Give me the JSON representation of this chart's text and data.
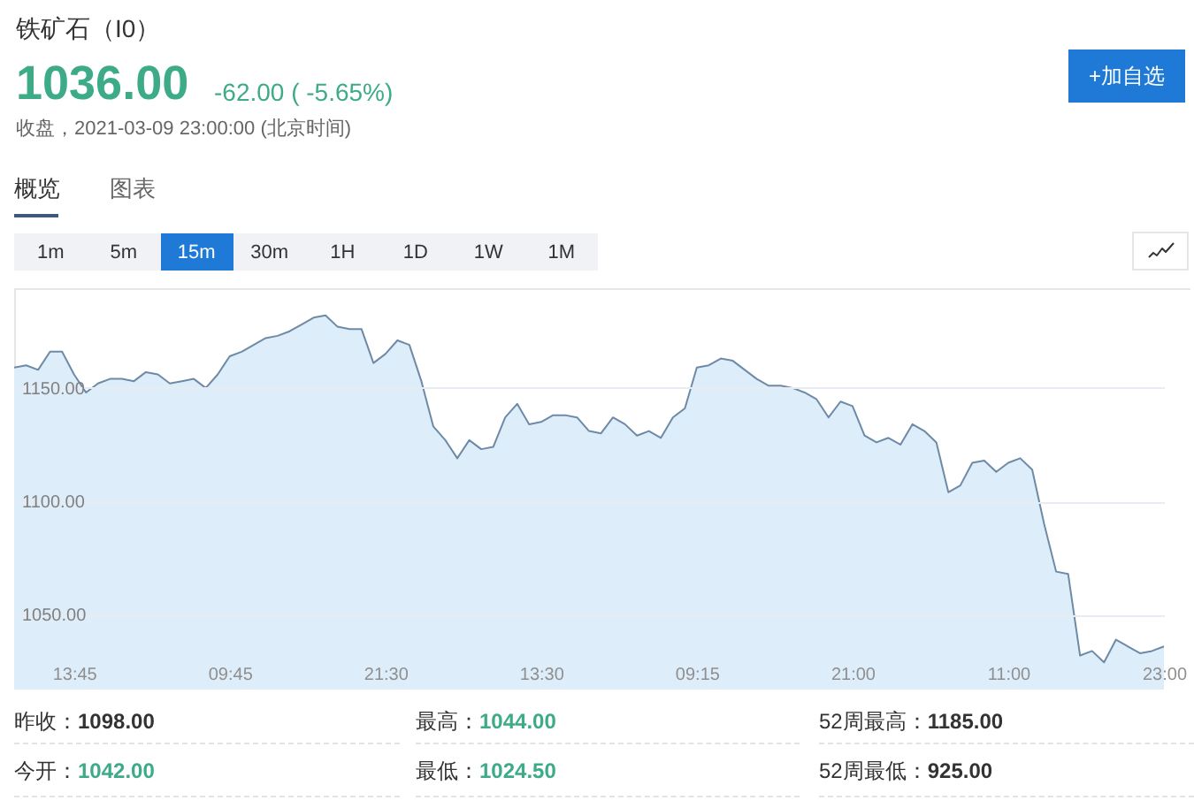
{
  "chart_data": {
    "type": "area",
    "title": "铁矿石（I0）",
    "annotations": [
      "1036.00",
      "-62.00 ( -5.65%)",
      "收盘，2021-03-09 23:00:00 (北京时间)",
      "+加自选",
      "概览",
      "图表",
      "1m",
      "5m",
      "15m",
      "30m",
      "1H",
      "1D",
      "1W",
      "1M",
      "昨收：",
      "1098.00",
      "最高：",
      "1044.00",
      "52周最高：",
      "1185.00",
      "今开：",
      "1042.00",
      "最低：",
      "1024.50",
      "52周最低：",
      "925.00"
    ],
    "categories": [
      null,
      null,
      null,
      null,
      null,
      "13:45",
      null,
      null,
      null,
      null,
      null,
      null,
      null,
      null,
      null,
      null,
      null,
      null,
      "09:45",
      null,
      null,
      null,
      null,
      null,
      null,
      null,
      null,
      null,
      null,
      null,
      null,
      "21:30",
      null,
      null,
      null,
      null,
      null,
      null,
      null,
      null,
      null,
      null,
      null,
      null,
      "13:30",
      null,
      null,
      null,
      null,
      null,
      null,
      null,
      null,
      null,
      null,
      null,
      null,
      "09:15",
      null,
      null,
      null,
      null,
      null,
      null,
      null,
      null,
      null,
      null,
      null,
      null,
      "21:00",
      null,
      null,
      null,
      null,
      null,
      null,
      null,
      null,
      null,
      null,
      null,
      null,
      "11:00",
      null,
      null,
      null,
      null,
      null,
      null,
      null,
      null,
      null,
      null,
      null,
      null,
      "23:00"
    ],
    "values": [
      1159,
      1160,
      1158,
      1166,
      1166,
      1156,
      1148,
      1152,
      1154,
      1154,
      1153,
      1157,
      1156,
      1152,
      1153,
      1154,
      1150,
      1156,
      1164,
      1166,
      1169,
      1172,
      1173,
      1175,
      1178,
      1181,
      1182,
      1177,
      1176,
      1176,
      1161,
      1165,
      1171,
      1169,
      1153,
      1133,
      1127,
      1119,
      1127,
      1123,
      1124,
      1137,
      1143,
      1134,
      1135,
      1138,
      1138,
      1137,
      1131,
      1130,
      1137,
      1134,
      1129,
      1131,
      1128,
      1137,
      1141,
      1159,
      1160,
      1163,
      1162,
      1158,
      1154,
      1151,
      1151,
      1150,
      1148,
      1145,
      1137,
      1144,
      1142,
      1129,
      1126,
      1128,
      1125,
      1134,
      1131,
      1126,
      1104,
      1107,
      1117,
      1118,
      1113,
      1117,
      1119,
      1114,
      1090,
      1069,
      1068,
      1032,
      1034,
      1029,
      1039,
      1036,
      1033,
      1034,
      1036
    ],
    "color": "#deedfa",
    "ylim": [
      1017,
      1194
    ],
    "yticks": [
      {
        "value": 1050,
        "label": "1050.00"
      },
      {
        "value": 1100,
        "label": "1100.00"
      },
      {
        "value": 1150,
        "label": "1150.00"
      }
    ],
    "grid": "y"
  }
}
